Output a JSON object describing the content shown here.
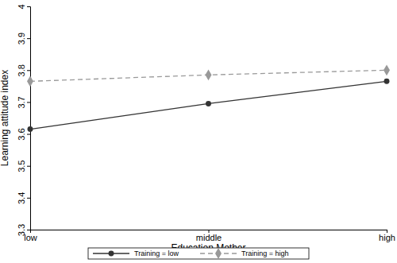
{
  "chart_data": {
    "type": "line",
    "x_label": "Education Mother",
    "y_label": "Learning attitude index",
    "categories": [
      "low",
      "middle",
      "high"
    ],
    "series": [
      {
        "name": "Training = low",
        "color": "#333333",
        "marker": "circle",
        "line_style": "solid",
        "values": [
          3.615,
          3.695,
          3.765
        ]
      },
      {
        "name": "Training = high",
        "color": "#999999",
        "marker": "diamond",
        "line_style": "dashed",
        "values": [
          3.765,
          3.785,
          3.8
        ]
      }
    ],
    "ylim": [
      3.3,
      4
    ],
    "yticks": [
      3.3,
      3.4,
      3.5,
      3.6,
      3.7,
      3.8,
      3.9,
      4
    ],
    "grid": false,
    "legend": "bottom"
  }
}
